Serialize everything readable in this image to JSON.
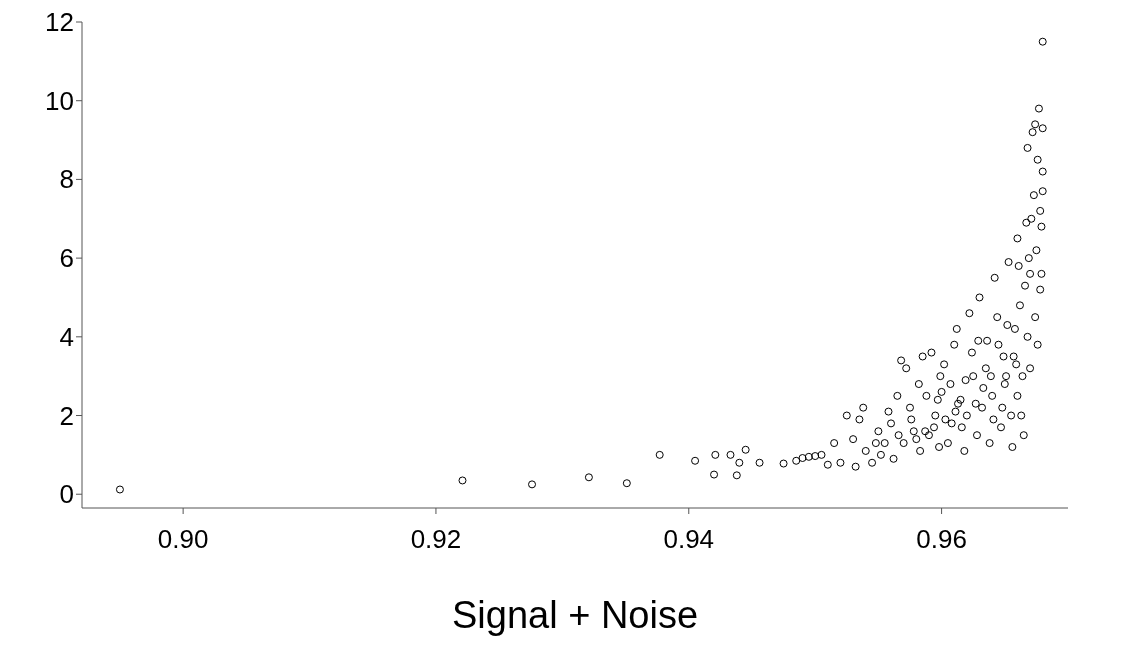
{
  "chart_data": {
    "type": "scatter",
    "xlabel": "Signal + Noise",
    "xlim": [
      0.892,
      0.97
    ],
    "ylim": [
      -0.35,
      12
    ],
    "xticks": [
      {
        "value": 0.9,
        "label": "0.90"
      },
      {
        "value": 0.92,
        "label": "0.92"
      },
      {
        "value": 0.94,
        "label": "0.94"
      },
      {
        "value": 0.96,
        "label": "0.96"
      }
    ],
    "yticks": [
      0,
      2,
      4,
      6,
      8,
      10,
      12
    ],
    "grid": false,
    "marker": "circle",
    "series": [
      {
        "color": "#000000",
        "x": [
          0.895,
          0.9221,
          0.9276,
          0.9321,
          0.9351,
          0.9377,
          0.9405,
          0.9421,
          0.942,
          0.9433,
          0.9438,
          0.9445,
          0.944,
          0.9456,
          0.9475,
          0.9485,
          0.949,
          0.9495,
          0.95,
          0.9505,
          0.951,
          0.9515,
          0.952,
          0.9525,
          0.953,
          0.9532,
          0.9535,
          0.9538,
          0.954,
          0.9545,
          0.955,
          0.9552,
          0.9555,
          0.956,
          0.9562,
          0.9565,
          0.9568,
          0.957,
          0.9572,
          0.9575,
          0.9578,
          0.958,
          0.9582,
          0.9585,
          0.9587,
          0.959,
          0.9592,
          0.9595,
          0.9598,
          0.96,
          0.9602,
          0.9605,
          0.9608,
          0.961,
          0.9612,
          0.9615,
          0.9618,
          0.962,
          0.9622,
          0.9625,
          0.9628,
          0.963,
          0.9632,
          0.9635,
          0.9638,
          0.964,
          0.9642,
          0.9645,
          0.9647,
          0.965,
          0.9652,
          0.9653,
          0.9655,
          0.9657,
          0.966,
          0.966,
          0.9662,
          0.9664,
          0.9665,
          0.9667,
          0.9668,
          0.967,
          0.967,
          0.9672,
          0.9673,
          0.9674,
          0.9675,
          0.9676,
          0.9676,
          0.9677,
          0.9678,
          0.9678,
          0.9679,
          0.968,
          0.968,
          0.968,
          0.968,
          0.9679,
          0.9671,
          0.9669,
          0.9666,
          0.9663,
          0.9658,
          0.9656,
          0.9651,
          0.9648,
          0.9644,
          0.9641,
          0.9636,
          0.9633,
          0.9627,
          0.9624,
          0.9619,
          0.9616,
          0.9613,
          0.9607,
          0.9603,
          0.9597,
          0.9594,
          0.9588,
          0.9583,
          0.9576,
          0.9566,
          0.9558,
          0.9548,
          0.9668,
          0.9674,
          0.9661,
          0.9659,
          0.9649,
          0.9639,
          0.9629,
          0.9611,
          0.9599
        ],
        "values": [
          0.12,
          0.35,
          0.25,
          0.43,
          0.28,
          1.0,
          0.85,
          1.0,
          0.5,
          1.0,
          0.48,
          1.13,
          0.8,
          0.8,
          0.78,
          0.85,
          0.92,
          0.95,
          0.97,
          1.0,
          0.75,
          1.3,
          0.8,
          2.0,
          1.4,
          0.7,
          1.9,
          2.2,
          1.1,
          0.8,
          1.6,
          1.0,
          1.3,
          1.8,
          0.9,
          2.5,
          3.4,
          1.3,
          3.2,
          2.2,
          1.6,
          1.4,
          2.8,
          3.5,
          1.6,
          1.5,
          3.6,
          2.0,
          1.2,
          2.6,
          3.3,
          1.3,
          1.8,
          3.8,
          4.2,
          2.4,
          1.1,
          2.0,
          4.6,
          3.0,
          1.5,
          5.0,
          2.2,
          3.2,
          1.3,
          2.5,
          5.5,
          3.8,
          1.7,
          2.8,
          4.3,
          5.9,
          2.0,
          3.5,
          6.5,
          2.5,
          4.8,
          3.0,
          1.5,
          6.9,
          4.0,
          3.2,
          5.6,
          9.2,
          7.6,
          4.5,
          6.2,
          8.5,
          3.8,
          9.8,
          7.2,
          5.2,
          6.8,
          11.5,
          9.3,
          8.2,
          7.7,
          5.6,
          7.0,
          6.0,
          5.3,
          2.0,
          4.2,
          1.2,
          3.0,
          2.2,
          4.5,
          1.9,
          3.9,
          2.7,
          2.3,
          3.6,
          2.9,
          1.7,
          2.3,
          2.8,
          1.9,
          2.4,
          1.7,
          2.5,
          1.1,
          1.9,
          1.5,
          2.1,
          1.3,
          8.8,
          9.4,
          5.8,
          3.3,
          3.5,
          3.0,
          3.9,
          2.1,
          3.0
        ]
      }
    ]
  }
}
